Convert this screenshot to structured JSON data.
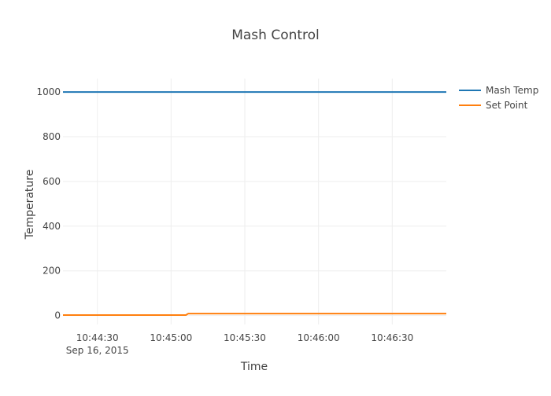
{
  "chart_data": {
    "type": "line",
    "title": "Mash Control",
    "xlabel": "Time",
    "ylabel": "Temperature",
    "x_axis": {
      "type": "date",
      "range": [
        "2015-09-16 10:44:16",
        "2015-09-16 10:46:52"
      ],
      "ticks": [
        {
          "value": "2015-09-16 10:44:30",
          "label": "10:44:30",
          "sublabel": "Sep 16, 2015"
        },
        {
          "value": "2015-09-16 10:45:00",
          "label": "10:45:00",
          "sublabel": ""
        },
        {
          "value": "2015-09-16 10:45:30",
          "label": "10:45:30",
          "sublabel": ""
        },
        {
          "value": "2015-09-16 10:46:00",
          "label": "10:46:00",
          "sublabel": ""
        },
        {
          "value": "2015-09-16 10:46:30",
          "label": "10:46:30",
          "sublabel": ""
        }
      ]
    },
    "y_axis": {
      "range": [
        -40,
        1060
      ],
      "ticks": [
        {
          "value": 0,
          "label": "0"
        },
        {
          "value": 200,
          "label": "200"
        },
        {
          "value": 400,
          "label": "400"
        },
        {
          "value": 600,
          "label": "600"
        },
        {
          "value": 800,
          "label": "800"
        },
        {
          "value": 1000,
          "label": "1000"
        }
      ]
    },
    "grid": true,
    "legend": "top-right",
    "series": [
      {
        "name": "Mash Temp",
        "color": "#1f77b4",
        "points": [
          {
            "x": "2015-09-16 10:44:16",
            "y": 1000
          },
          {
            "x": "2015-09-16 10:46:52",
            "y": 1000
          }
        ]
      },
      {
        "name": "Set Point",
        "color": "#ff7f0e",
        "points": [
          {
            "x": "2015-09-16 10:44:16",
            "y": 2
          },
          {
            "x": "2015-09-16 10:45:06",
            "y": 2
          },
          {
            "x": "2015-09-16 10:45:07",
            "y": 9
          },
          {
            "x": "2015-09-16 10:46:52",
            "y": 9
          }
        ]
      }
    ]
  }
}
